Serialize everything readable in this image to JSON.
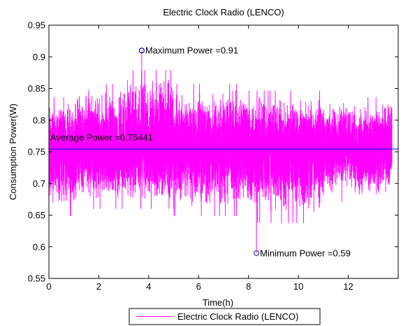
{
  "chart_data": {
    "type": "line",
    "title": "Electric Clock Radio (LENCO)",
    "xlabel": "Time(h)",
    "ylabel": "Consumption Power(W)",
    "xlim": [
      0,
      14
    ],
    "ylim": [
      0.55,
      0.95
    ],
    "xticks": [
      0,
      2,
      4,
      6,
      8,
      10,
      12
    ],
    "yticks": [
      0.55,
      0.6,
      0.65,
      0.7,
      0.75,
      0.8,
      0.85,
      0.9,
      0.95
    ],
    "xtick_labels": [
      "0",
      "2",
      "4",
      "6",
      "8",
      "10",
      "12"
    ],
    "ytick_labels": [
      "0.55",
      "0.6",
      "0.65",
      "0.7",
      "0.75",
      "0.8",
      "0.85",
      "0.9",
      "0.95"
    ],
    "grid": false,
    "legend": {
      "placement": "bottom-center-outside",
      "entries": [
        "Electric Clock Radio (LENCO)"
      ]
    },
    "series": [
      {
        "name": "Electric Clock Radio (LENCO)",
        "color": "#ff00ff",
        "x_range": [
          0,
          13.75
        ],
        "mean": 0.75441,
        "min": 0.59,
        "max": 0.91,
        "typical_band": [
          0.65,
          0.86
        ],
        "segments": [
          {
            "x_from": 0,
            "x_to": 1,
            "band": [
              0.66,
              0.83
            ]
          },
          {
            "x_from": 1,
            "x_to": 3,
            "band": [
              0.67,
              0.85
            ]
          },
          {
            "x_from": 3,
            "x_to": 5,
            "band": [
              0.67,
              0.87
            ]
          },
          {
            "x_from": 5,
            "x_to": 8,
            "band": [
              0.66,
              0.85
            ]
          },
          {
            "x_from": 8,
            "x_to": 11,
            "band": [
              0.65,
              0.84
            ]
          },
          {
            "x_from": 11,
            "x_to": 13.75,
            "band": [
              0.68,
              0.83
            ]
          }
        ]
      }
    ],
    "average_line": {
      "y": 0.75441,
      "color": "#0000ff"
    },
    "annotations": [
      {
        "id": "max",
        "x": 3.72,
        "y": 0.91,
        "text": "Maximum Power =0.91"
      },
      {
        "id": "min",
        "x": 8.32,
        "y": 0.59,
        "text": "Minimum Power =0.59"
      },
      {
        "id": "avg",
        "x": 0,
        "y": 0.75441,
        "text": "Average Power =0.75441"
      }
    ]
  }
}
